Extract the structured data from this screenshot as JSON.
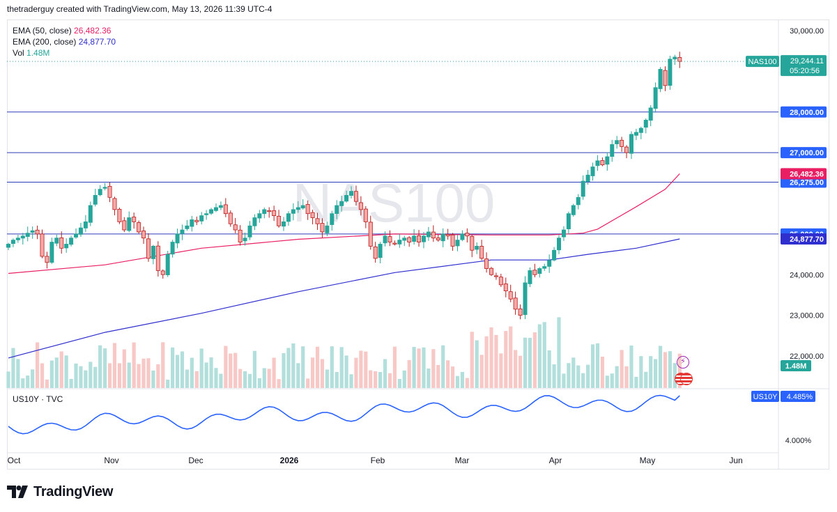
{
  "attribution": "thetraderguy created with TradingView.com, May 13, 2026 11:39 UTC-4",
  "legend": [
    {
      "name": "EMA (50, close)",
      "value": "26,482.36",
      "color": "#e91e63"
    },
    {
      "name": "EMA (200, close)",
      "value": "24,877.70",
      "color": "#2f2fcf"
    },
    {
      "name": "Vol",
      "value": "1.48M",
      "color": "#26a69a"
    }
  ],
  "watermark": "NAS100",
  "footer_brand": "TradingView",
  "lower_pane_title": "US10Y · TVC",
  "chart_data": {
    "type": "candlestick",
    "symbol": "NAS100",
    "price_axis": {
      "range": [
        21400,
        30400
      ],
      "ticks": [
        "30,000.00",
        "24,000.00",
        "23,000.00",
        "22,000.00"
      ]
    },
    "time_axis": {
      "ticks": [
        "Oct",
        "Nov",
        "Dec",
        "2026",
        "Feb",
        "Mar",
        "Apr",
        "May",
        "Jun"
      ]
    },
    "last_price": {
      "symbol": "NAS100",
      "value": "29,244.11",
      "countdown": "05:20:56"
    },
    "horizontal_lines": [
      {
        "label": "28,000.00",
        "value": 28000
      },
      {
        "label": "27,000.00",
        "value": 27000
      },
      {
        "label": "26,275.00",
        "value": 26275
      },
      {
        "label": "25,000.00",
        "value": 25000
      }
    ],
    "ema_labels": [
      {
        "label": "26,482.36",
        "value": 26482.36,
        "color": "#e91e63"
      },
      {
        "label": "24,877.70",
        "value": 24877.7,
        "color": "#2f2fcf"
      }
    ],
    "volume_label": "1.48M",
    "closes": [
      24750,
      24850,
      24900,
      24950,
      25020,
      25080,
      25000,
      24450,
      24300,
      24800,
      24900,
      24650,
      24750,
      24900,
      25000,
      25150,
      25300,
      25700,
      25950,
      26100,
      26150,
      25900,
      25600,
      25300,
      25100,
      25400,
      25300,
      25050,
      24900,
      24400,
      24700,
      24100,
      24000,
      24500,
      24800,
      25000,
      25100,
      25200,
      25350,
      25300,
      25450,
      25500,
      25600,
      25650,
      25700,
      25500,
      25250,
      25100,
      24800,
      24900,
      25200,
      25400,
      25500,
      25600,
      25550,
      25450,
      25200,
      25300,
      25500,
      25600,
      25650,
      25700,
      25500,
      25400,
      25250,
      25050,
      25200,
      25500,
      25700,
      25800,
      25950,
      26050,
      25800,
      25600,
      25300,
      24700,
      24400,
      24750,
      24950,
      24800,
      24750,
      24850,
      24900,
      24800,
      24950,
      24800,
      24950,
      25050,
      24900,
      24850,
      25000,
      24950,
      24700,
      24850,
      25000,
      24950,
      24600,
      24700,
      24400,
      24150,
      24000,
      23950,
      23750,
      23600,
      23400,
      23150,
      23000,
      23800,
      24100,
      24000,
      24150,
      24200,
      24350,
      24600,
      24900,
      25100,
      25500,
      25700,
      25900,
      26300,
      26450,
      26650,
      26800,
      26700,
      26900,
      27200,
      27300,
      27150,
      27000,
      27450,
      27500,
      27600,
      27800,
      28100,
      28600,
      29050,
      28650,
      29300,
      29350,
      29244
    ],
    "ema50": [
      [
        0,
        24030
      ],
      [
        20,
        24240
      ],
      [
        40,
        24650
      ],
      [
        60,
        24870
      ],
      [
        80,
        25000
      ],
      [
        100,
        24975
      ],
      [
        112,
        24975
      ],
      [
        119,
        25020
      ],
      [
        122,
        25120
      ],
      [
        130,
        25670
      ],
      [
        136,
        26100
      ],
      [
        139,
        26482
      ]
    ],
    "ema200": [
      [
        0,
        21950
      ],
      [
        20,
        22580
      ],
      [
        40,
        23050
      ],
      [
        60,
        23580
      ],
      [
        80,
        24050
      ],
      [
        100,
        24360
      ],
      [
        112,
        24360
      ],
      [
        120,
        24500
      ],
      [
        130,
        24650
      ],
      [
        139,
        24878
      ]
    ],
    "us10y": {
      "symbol": "US10Y",
      "value": "4.485%",
      "axis_label": "4.000%"
    }
  }
}
